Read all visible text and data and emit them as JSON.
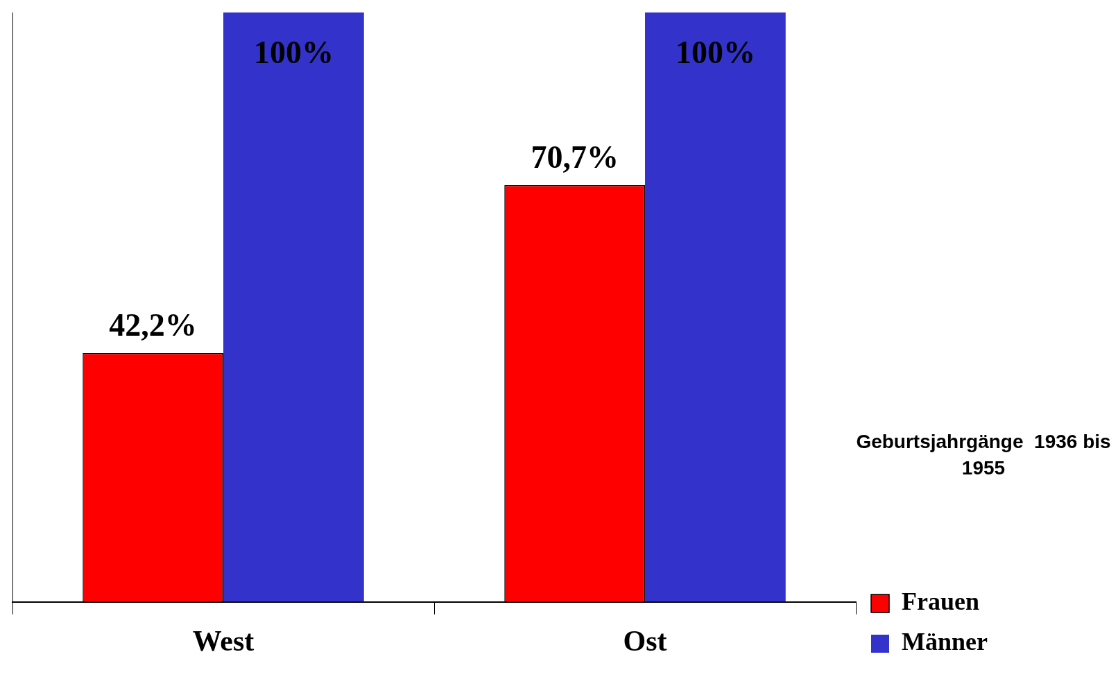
{
  "chart_data": {
    "type": "bar",
    "categories": [
      "West",
      "Ost"
    ],
    "series": [
      {
        "name": "Frauen",
        "color": "#ff0000",
        "values": [
          42.2,
          70.7
        ],
        "value_labels": [
          "42,2%",
          "70,7%"
        ]
      },
      {
        "name": "Männer",
        "color": "#3333cc",
        "values": [
          100,
          100
        ],
        "value_labels": [
          "100%",
          "100%"
        ]
      }
    ],
    "relative": false,
    "tick_labels": "x",
    "legend": "bottom right",
    "annotations": [
      "Geburtsjahrgänge  1936 bis 1955"
    ]
  }
}
